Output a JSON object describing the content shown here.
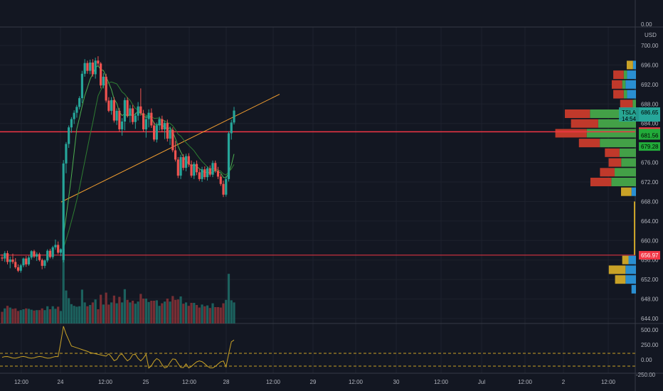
{
  "chart_data": {
    "type": "candlestick",
    "symbol": "TSLA",
    "currency": "USD",
    "last_price": "686.65",
    "countdown": "14:54",
    "price_axis_ticks": [
      "700.00",
      "696.00",
      "692.00",
      "688.00",
      "684.00",
      "676.00",
      "672.00",
      "668.00",
      "664.00",
      "660.00",
      "656.00",
      "652.00",
      "648.00",
      "644.00"
    ],
    "time_axis_ticks": [
      "12:00",
      "24",
      "12:00",
      "25",
      "12:00",
      "28",
      "12:00",
      "29",
      "12:00",
      "30",
      "12:00",
      "Jul",
      "12:00",
      "2",
      "12:00"
    ],
    "oscillator_ticks": [
      "500.00",
      "250.00",
      "0.00",
      "-250.00"
    ],
    "top_pane_tick": "0.00",
    "price_labels": [
      {
        "value": "682.33",
        "color": "#f23645",
        "text_color": "#ffffff"
      },
      {
        "value": "682.02",
        "color": "#22ab3a",
        "text_color": "#000000"
      },
      {
        "value": "681.56",
        "color": "#22ab3a",
        "text_color": "#000000"
      },
      {
        "value": "679.28",
        "color": "#22ab3a",
        "text_color": "#000000"
      },
      {
        "value": "656.97",
        "color": "#f23645",
        "text_color": "#ffffff"
      }
    ],
    "horizontal_lines": [
      682.3,
      657.0
    ],
    "trendline": {
      "from": [
        0,
        667.9
      ],
      "to": [
        31,
        690.0
      ]
    },
    "candles": [
      [
        656.5,
        657.2,
        655.8,
        656.3
      ],
      [
        656.3,
        657.8,
        655.6,
        657.4
      ],
      [
        657.4,
        657.9,
        655.1,
        655.6
      ],
      [
        655.6,
        656.7,
        654.3,
        656.1
      ],
      [
        656.1,
        657.3,
        655.2,
        655.6
      ],
      [
        655.6,
        656.4,
        654.2,
        654.5
      ],
      [
        654.5,
        655.1,
        653.5,
        653.8
      ],
      [
        653.8,
        655.2,
        653.4,
        654.9
      ],
      [
        654.9,
        656.5,
        654.5,
        656.3
      ],
      [
        656.3,
        656.8,
        654.6,
        655.1
      ],
      [
        655.1,
        656.9,
        654.8,
        656.5
      ],
      [
        656.5,
        658.0,
        656.1,
        657.8
      ],
      [
        657.8,
        658.1,
        656.4,
        656.7
      ],
      [
        656.7,
        657.6,
        655.8,
        657.2
      ],
      [
        657.2,
        657.5,
        655.7,
        656.0
      ],
      [
        656.0,
        656.3,
        654.1,
        654.8
      ],
      [
        654.8,
        656.1,
        654.3,
        655.9
      ],
      [
        655.9,
        658.2,
        655.5,
        657.9
      ],
      [
        657.9,
        658.3,
        656.3,
        656.6
      ],
      [
        656.6,
        658.9,
        656.2,
        658.6
      ],
      [
        658.6,
        660.2,
        658.1,
        659.1
      ],
      [
        659.1,
        659.8,
        657.2,
        657.5
      ],
      [
        657.5,
        658.4,
        656.8,
        658.2
      ],
      [
        656.0,
        676.5,
        655.5,
        675.8
      ],
      [
        675.8,
        680.2,
        673.8,
        679.8
      ],
      [
        679.8,
        683.6,
        679.0,
        683.2
      ],
      [
        683.2,
        685.3,
        682.1,
        684.9
      ],
      [
        684.9,
        686.7,
        683.9,
        686.2
      ],
      [
        686.2,
        687.8,
        685.2,
        687.4
      ],
      [
        687.4,
        689.6,
        686.9,
        689.2
      ],
      [
        689.2,
        694.8,
        688.2,
        694.2
      ],
      [
        694.2,
        697.2,
        693.6,
        696.4
      ],
      [
        696.4,
        696.9,
        694.2,
        694.8
      ],
      [
        694.8,
        697.1,
        694.1,
        696.5
      ],
      [
        696.5,
        697.2,
        693.6,
        694.1
      ],
      [
        694.1,
        697.5,
        693.2,
        696.9
      ],
      [
        696.9,
        697.8,
        695.8,
        696.3
      ],
      [
        696.3,
        696.6,
        691.2,
        691.8
      ],
      [
        691.8,
        694.3,
        691.2,
        693.6
      ],
      [
        693.6,
        694.2,
        688.3,
        688.7
      ],
      [
        688.7,
        689.4,
        686.3,
        686.6
      ],
      [
        686.6,
        689.4,
        685.8,
        688.8
      ],
      [
        688.8,
        689.4,
        684.2,
        684.6
      ],
      [
        684.6,
        687.1,
        683.7,
        686.6
      ],
      [
        686.6,
        687.2,
        682.3,
        682.8
      ],
      [
        682.8,
        685.1,
        681.5,
        684.4
      ],
      [
        684.4,
        689.3,
        682.6,
        688.8
      ],
      [
        688.8,
        689.4,
        685.2,
        685.6
      ],
      [
        685.6,
        687.8,
        684.2,
        687.1
      ],
      [
        687.1,
        687.8,
        683.8,
        684.3
      ],
      [
        684.3,
        686.2,
        682.9,
        685.6
      ],
      [
        685.6,
        688.4,
        684.6,
        687.5
      ],
      [
        687.5,
        691.2,
        685.6,
        686.1
      ],
      [
        686.1,
        686.8,
        682.3,
        682.8
      ],
      [
        682.8,
        685.6,
        681.1,
        684.9
      ],
      [
        684.9,
        686.9,
        683.2,
        686.2
      ],
      [
        686.2,
        687.1,
        683.1,
        683.6
      ],
      [
        683.6,
        684.3,
        680.3,
        680.7
      ],
      [
        680.7,
        684.2,
        680.1,
        683.6
      ],
      [
        683.6,
        685.4,
        682.6,
        684.9
      ],
      [
        684.9,
        685.6,
        682.2,
        682.8
      ],
      [
        682.8,
        684.6,
        680.8,
        684.1
      ],
      [
        684.1,
        684.8,
        680.3,
        680.9
      ],
      [
        680.9,
        683.4,
        679.6,
        682.7
      ],
      [
        682.7,
        683.2,
        678.1,
        678.5
      ],
      [
        678.5,
        680.4,
        676.2,
        676.6
      ],
      [
        676.6,
        677.1,
        672.8,
        673.3
      ],
      [
        673.3,
        677.6,
        672.6,
        677.1
      ],
      [
        677.1,
        677.7,
        674.4,
        674.9
      ],
      [
        674.9,
        677.8,
        674.2,
        677.3
      ],
      [
        677.3,
        677.9,
        675.1,
        675.6
      ],
      [
        675.6,
        676.4,
        672.9,
        673.3
      ],
      [
        673.3,
        676.1,
        672.6,
        675.7
      ],
      [
        675.7,
        676.4,
        673.4,
        674.0
      ],
      [
        674.0,
        674.6,
        672.2,
        672.6
      ],
      [
        672.6,
        675.1,
        672.0,
        674.6
      ],
      [
        674.6,
        675.2,
        672.5,
        673.0
      ],
      [
        673.0,
        675.2,
        672.3,
        674.8
      ],
      [
        674.8,
        675.4,
        673.1,
        673.5
      ],
      [
        673.5,
        676.4,
        673.0,
        675.9
      ],
      [
        675.9,
        676.4,
        673.9,
        674.3
      ],
      [
        674.3,
        675.1,
        672.6,
        673.1
      ],
      [
        673.1,
        673.6,
        671.2,
        671.6
      ],
      [
        671.6,
        672.3,
        668.9,
        669.4
      ],
      [
        669.4,
        673.2,
        669.0,
        672.6
      ],
      [
        672.6,
        682.4,
        672.1,
        682.0
      ],
      [
        682.0,
        684.8,
        680.7,
        684.2
      ],
      [
        684.2,
        687.4,
        683.8,
        686.65
      ]
    ],
    "volume_profile": {
      "rows": [
        {
          "price": 696.0,
          "up": 0,
          "down": 3,
          "other": 2
        },
        {
          "price": 694.0,
          "up": 2,
          "down": 5,
          "other": 6
        },
        {
          "price": 692.0,
          "up": 2,
          "down": 5,
          "other": 7
        },
        {
          "price": 690.0,
          "up": 2,
          "down": 5,
          "other": 6
        },
        {
          "price": 688.0,
          "up": 2,
          "down": 6,
          "other": 0
        },
        {
          "price": 686.0,
          "up": 28,
          "down": 12,
          "other": 0
        },
        {
          "price": 684.0,
          "up": 23,
          "down": 13,
          "other": 0
        },
        {
          "price": 682.0,
          "up": 30,
          "down": 15,
          "other": 0
        },
        {
          "price": 680.0,
          "up": 22,
          "down": 10,
          "other": 0
        },
        {
          "price": 678.0,
          "up": 10,
          "down": 7,
          "other": 0
        },
        {
          "price": 676.0,
          "up": 9,
          "down": 6,
          "other": 0
        },
        {
          "price": 674.0,
          "up": 13,
          "down": 7,
          "other": 0
        },
        {
          "price": 672.0,
          "up": 15,
          "down": 10,
          "other": 0
        },
        {
          "price": 670.0,
          "up": 0,
          "down": 5,
          "other": 3
        },
        {
          "price": 656.0,
          "up": 0,
          "down": 3,
          "other": 5
        },
        {
          "price": 654.0,
          "up": 0,
          "down": 8,
          "other": 7
        },
        {
          "price": 652.0,
          "up": 0,
          "down": 5,
          "other": 7
        },
        {
          "price": 650.0,
          "up": 0,
          "down": 0,
          "other": 3
        }
      ]
    }
  }
}
